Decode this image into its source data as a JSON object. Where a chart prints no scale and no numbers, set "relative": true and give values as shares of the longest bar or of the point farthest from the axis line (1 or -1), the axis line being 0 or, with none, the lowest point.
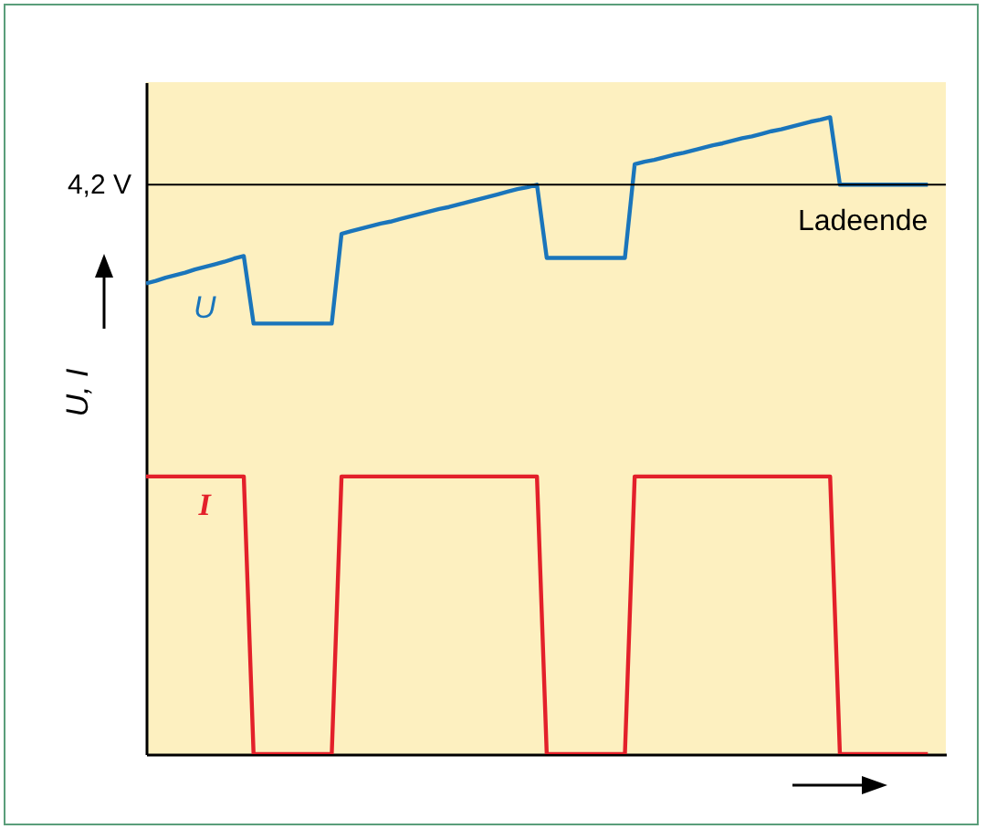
{
  "chart_data": {
    "type": "line",
    "relative": true,
    "ylabel": "U, I",
    "categories": [
      null,
      null,
      null,
      null,
      null,
      null,
      null,
      null,
      null,
      null,
      null,
      null,
      null,
      null,
      null,
      null,
      null,
      null,
      null,
      null,
      null,
      null,
      null,
      null,
      null,
      null,
      null,
      null,
      null,
      null,
      null,
      null,
      null,
      null,
      null,
      null,
      null,
      null,
      null,
      null,
      null,
      null,
      null,
      null,
      null,
      null,
      null,
      null,
      null,
      null,
      null,
      null,
      null,
      null,
      null,
      null,
      null,
      null,
      null,
      null,
      null,
      null,
      null,
      null,
      null,
      null,
      null,
      null,
      null,
      null,
      null,
      null,
      null,
      null,
      null,
      null,
      null,
      null,
      null,
      null,
      null
    ],
    "series": [
      {
        "name": "U",
        "color": "#1a75bb",
        "values": [
          0.739,
          0.743,
          0.748,
          0.752,
          0.756,
          0.761,
          0.765,
          0.769,
          0.773,
          0.778,
          0.782,
          0.676,
          0.676,
          0.676,
          0.676,
          0.676,
          0.676,
          0.676,
          0.676,
          0.676,
          0.817,
          0.821,
          0.825,
          0.829,
          0.833,
          0.836,
          0.84,
          0.844,
          0.848,
          0.852,
          0.856,
          0.859,
          0.863,
          0.867,
          0.871,
          0.875,
          0.879,
          0.883,
          0.887,
          0.89,
          0.894,
          0.779,
          0.779,
          0.779,
          0.779,
          0.779,
          0.779,
          0.779,
          0.779,
          0.779,
          0.926,
          0.93,
          0.933,
          0.937,
          0.941,
          0.944,
          0.948,
          0.952,
          0.956,
          0.959,
          0.963,
          0.967,
          0.97,
          0.974,
          0.978,
          0.981,
          0.985,
          0.989,
          0.993,
          0.996,
          1,
          0.894,
          0.894,
          0.894,
          0.894,
          0.894,
          0.894,
          0.894,
          0.894,
          0.894,
          0.894
        ]
      },
      {
        "name": "I",
        "color": "#e3202a",
        "values": [
          0.436,
          0.436,
          0.436,
          0.436,
          0.436,
          0.436,
          0.436,
          0.436,
          0.436,
          0.436,
          0.436,
          0,
          0,
          0,
          0,
          0,
          0,
          0,
          0,
          0,
          0.436,
          0.436,
          0.436,
          0.436,
          0.436,
          0.436,
          0.436,
          0.436,
          0.436,
          0.436,
          0.436,
          0.436,
          0.436,
          0.436,
          0.436,
          0.436,
          0.436,
          0.436,
          0.436,
          0.436,
          0.436,
          0,
          0,
          0,
          0,
          0,
          0,
          0,
          0,
          0,
          0.436,
          0.436,
          0.436,
          0.436,
          0.436,
          0.436,
          0.436,
          0.436,
          0.436,
          0.436,
          0.436,
          0.436,
          0.436,
          0.436,
          0.436,
          0.436,
          0.436,
          0.436,
          0.436,
          0.436,
          0.436,
          0,
          0,
          0,
          0,
          0,
          0,
          0,
          0,
          0,
          0
        ]
      }
    ],
    "ref_lines": [
      {
        "axis": "y",
        "value": 0.894,
        "label": "4,2 V",
        "color": "#000000"
      }
    ],
    "annotations": [
      "Ladeende"
    ]
  }
}
